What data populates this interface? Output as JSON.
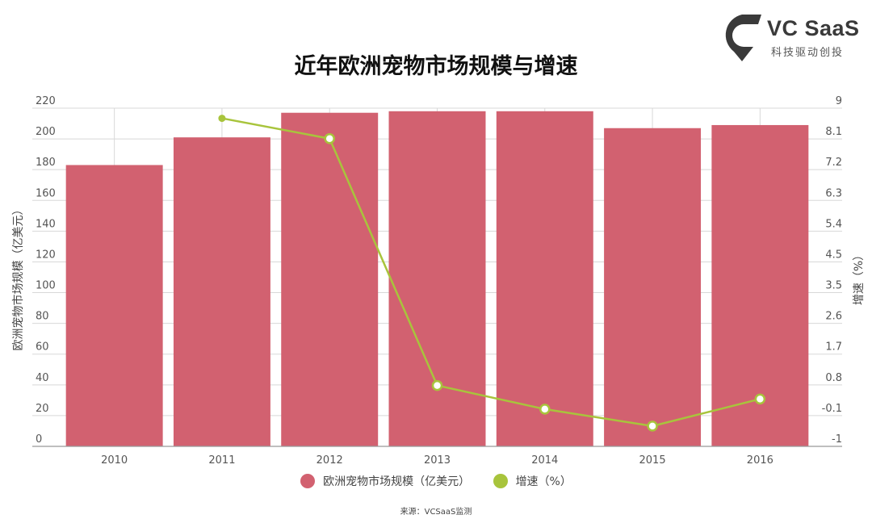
{
  "title": "近年欧洲宠物市场规模与增速",
  "logo": {
    "name": "VC SaaS",
    "slogan": "科技驱动创投",
    "icon": "vc-saas-logo-icon"
  },
  "source": "来源：VCSaaS监测",
  "colors": {
    "bar": "#D26170",
    "line": "#A8C43C",
    "grid": "#D8D8D8",
    "axis": "#999999"
  },
  "chart_data": {
    "type": "bar",
    "categories": [
      "2010",
      "2011",
      "2012",
      "2013",
      "2014",
      "2015",
      "2016"
    ],
    "series": [
      {
        "name": "欧洲宠物市场规模（亿美元）",
        "type": "bar",
        "axis": "left",
        "values": [
          183,
          201,
          217,
          218,
          218,
          207,
          209
        ]
      },
      {
        "name": "增速（%）",
        "type": "line",
        "axis": "right",
        "values": [
          null,
          8.7,
          8.1,
          0.8,
          0.1,
          -0.4,
          0.4
        ]
      }
    ],
    "ylabel": "欧洲宠物市场规模（亿美元）",
    "y2label": "增速（%）",
    "ylim": [
      0,
      220
    ],
    "y2lim": [
      -1,
      9
    ],
    "yticks": [
      "0",
      "20",
      "40",
      "60",
      "80",
      "100",
      "120",
      "140",
      "160",
      "180",
      "200",
      "220"
    ],
    "y2ticks": [
      "-1",
      "-0.1",
      "0.8",
      "1.7",
      "2.6",
      "3.5",
      "4.5",
      "5.4",
      "6.3",
      "7.2",
      "8.1",
      "9"
    ],
    "grid": true,
    "legend_position": "bottom"
  }
}
